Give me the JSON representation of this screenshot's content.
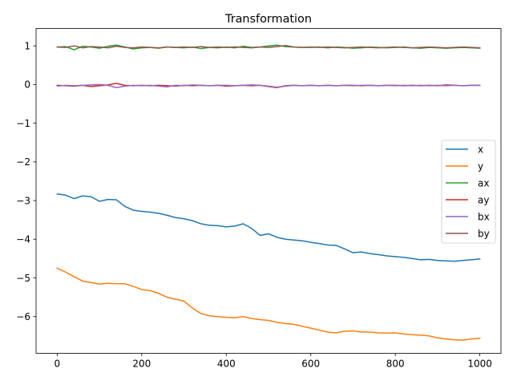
{
  "chart_data": {
    "type": "line",
    "title": "Transformation",
    "xlabel": "",
    "ylabel": "",
    "xlim": [
      -50,
      1050
    ],
    "ylim": [
      -6.95,
      1.45
    ],
    "xticks": [
      0,
      200,
      400,
      600,
      800,
      1000
    ],
    "yticks": [
      1,
      0,
      -1,
      -2,
      -3,
      -4,
      -5,
      -6
    ],
    "ytick_labels": [
      "1",
      "0",
      "−1",
      "−2",
      "−3",
      "−4",
      "−5",
      "−6"
    ],
    "grid": false,
    "legend_position": "center-right",
    "x": [
      0,
      20,
      40,
      60,
      80,
      100,
      120,
      140,
      160,
      180,
      200,
      220,
      240,
      260,
      280,
      300,
      320,
      340,
      360,
      380,
      400,
      420,
      440,
      460,
      480,
      500,
      520,
      540,
      560,
      580,
      600,
      620,
      640,
      660,
      680,
      700,
      720,
      740,
      760,
      780,
      800,
      820,
      840,
      860,
      880,
      900,
      920,
      940,
      960,
      980,
      1000
    ],
    "series": [
      {
        "name": "x",
        "color": "#1f77b4",
        "values": [
          -2.83,
          -2.86,
          -2.95,
          -2.88,
          -2.9,
          -3.02,
          -2.97,
          -2.98,
          -3.15,
          -3.25,
          -3.28,
          -3.3,
          -3.33,
          -3.38,
          -3.44,
          -3.47,
          -3.52,
          -3.6,
          -3.64,
          -3.65,
          -3.68,
          -3.66,
          -3.6,
          -3.72,
          -3.9,
          -3.86,
          -3.95,
          -4.0,
          -4.02,
          -4.04,
          -4.08,
          -4.11,
          -4.15,
          -4.16,
          -4.25,
          -4.35,
          -4.33,
          -4.37,
          -4.4,
          -4.43,
          -4.45,
          -4.47,
          -4.5,
          -4.53,
          -4.52,
          -4.55,
          -4.56,
          -4.57,
          -4.55,
          -4.53,
          -4.51
        ]
      },
      {
        "name": "y",
        "color": "#ff7f0e",
        "values": [
          -4.75,
          -4.85,
          -4.97,
          -5.08,
          -5.12,
          -5.16,
          -5.14,
          -5.15,
          -5.15,
          -5.22,
          -5.3,
          -5.33,
          -5.4,
          -5.5,
          -5.55,
          -5.6,
          -5.78,
          -5.92,
          -5.98,
          -6.0,
          -6.02,
          -6.03,
          -6.0,
          -6.05,
          -6.08,
          -6.1,
          -6.15,
          -6.18,
          -6.2,
          -6.25,
          -6.3,
          -6.35,
          -6.4,
          -6.42,
          -6.38,
          -6.37,
          -6.4,
          -6.4,
          -6.42,
          -6.43,
          -6.42,
          -6.45,
          -6.47,
          -6.48,
          -6.5,
          -6.55,
          -6.58,
          -6.6,
          -6.61,
          -6.58,
          -6.56
        ]
      },
      {
        "name": "ax",
        "color": "#2ca02c",
        "values": [
          0.97,
          0.98,
          0.9,
          0.99,
          0.97,
          0.94,
          0.99,
          1.02,
          0.97,
          0.92,
          0.95,
          0.96,
          0.94,
          0.97,
          0.96,
          0.95,
          0.97,
          0.93,
          0.96,
          0.95,
          0.97,
          0.95,
          0.99,
          0.96,
          0.97,
          1.0,
          1.02,
          0.98,
          0.97,
          0.96,
          0.96,
          0.97,
          0.95,
          0.97,
          0.96,
          0.94,
          0.95,
          0.97,
          0.96,
          0.95,
          0.96,
          0.97,
          0.95,
          0.94,
          0.96,
          0.95,
          0.94,
          0.95,
          0.96,
          0.95,
          0.94
        ]
      },
      {
        "name": "ay",
        "color": "#d62728",
        "values": [
          -0.02,
          -0.03,
          -0.04,
          -0.02,
          -0.05,
          -0.03,
          -0.01,
          0.03,
          -0.02,
          -0.03,
          -0.02,
          -0.03,
          -0.02,
          -0.03,
          -0.04,
          -0.02,
          -0.03,
          -0.02,
          -0.03,
          -0.02,
          -0.04,
          -0.03,
          -0.02,
          -0.03,
          -0.02,
          -0.05,
          -0.08,
          -0.03,
          -0.02,
          -0.03,
          -0.02,
          -0.03,
          -0.02,
          -0.03,
          -0.02,
          -0.02,
          -0.03,
          -0.02,
          -0.03,
          -0.02,
          -0.02,
          -0.03,
          -0.02,
          -0.03,
          -0.02,
          -0.03,
          -0.01,
          -0.02,
          -0.03,
          -0.02,
          -0.02
        ]
      },
      {
        "name": "bx",
        "color": "#9467bd",
        "values": [
          -0.04,
          -0.02,
          -0.03,
          -0.02,
          -0.01,
          0.0,
          -0.02,
          -0.08,
          -0.04,
          -0.02,
          -0.03,
          -0.02,
          -0.04,
          -0.06,
          -0.02,
          -0.03,
          -0.01,
          -0.02,
          -0.03,
          -0.02,
          -0.02,
          -0.03,
          -0.02,
          -0.01,
          -0.02,
          -0.04,
          -0.07,
          -0.04,
          -0.02,
          -0.03,
          -0.02,
          -0.03,
          -0.02,
          -0.03,
          -0.02,
          -0.03,
          -0.02,
          -0.02,
          -0.03,
          -0.02,
          -0.03,
          -0.02,
          -0.03,
          -0.02,
          -0.03,
          -0.02,
          -0.03,
          -0.02,
          -0.03,
          -0.02,
          -0.02
        ]
      },
      {
        "name": "by",
        "color": "#8c564b",
        "values": [
          0.97,
          0.96,
          1.0,
          0.95,
          0.98,
          0.97,
          0.95,
          0.99,
          0.96,
          0.95,
          0.97,
          0.96,
          0.95,
          0.97,
          0.96,
          0.97,
          0.96,
          0.98,
          0.96,
          0.97,
          0.96,
          0.97,
          0.96,
          0.95,
          0.97,
          0.96,
          0.98,
          1.01,
          0.97,
          0.96,
          0.97,
          0.96,
          0.97,
          0.96,
          0.95,
          0.96,
          0.97,
          0.96,
          0.95,
          0.96,
          0.97,
          0.96,
          0.95,
          0.96,
          0.97,
          0.96,
          0.95,
          0.96,
          0.97,
          0.96,
          0.95
        ]
      }
    ]
  }
}
